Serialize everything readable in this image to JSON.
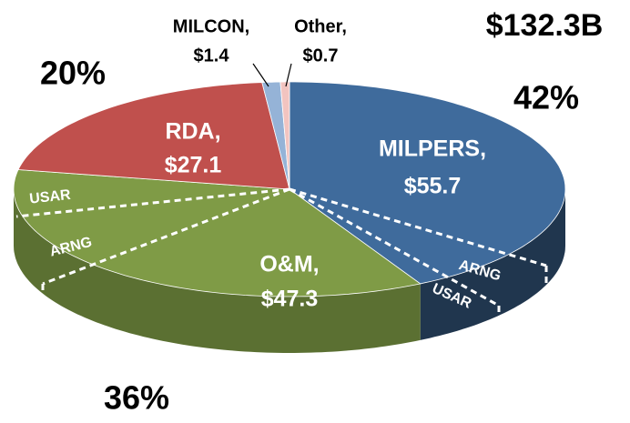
{
  "chart_data": {
    "type": "pie",
    "total_label": "$132.3B",
    "categories": [
      "MILPERS,",
      "O&M,",
      "RDA,",
      "MILCON,",
      "Other,"
    ],
    "values": [
      55.7,
      47.3,
      27.1,
      1.4,
      0.7
    ],
    "value_labels": [
      "$55.7",
      "$47.3",
      "$27.1",
      "$1.4",
      "$0.7"
    ],
    "colors": [
      "#3f6b9c",
      "#7f9b46",
      "#c0504d",
      "#95b3d7",
      "#f2c4c0"
    ],
    "percent_values": [
      42,
      36,
      20
    ],
    "percent_labels": [
      "42%",
      "36%",
      "20%"
    ],
    "annotations": [
      "USAR",
      "ARNG",
      "ARNG",
      "USAR"
    ]
  }
}
